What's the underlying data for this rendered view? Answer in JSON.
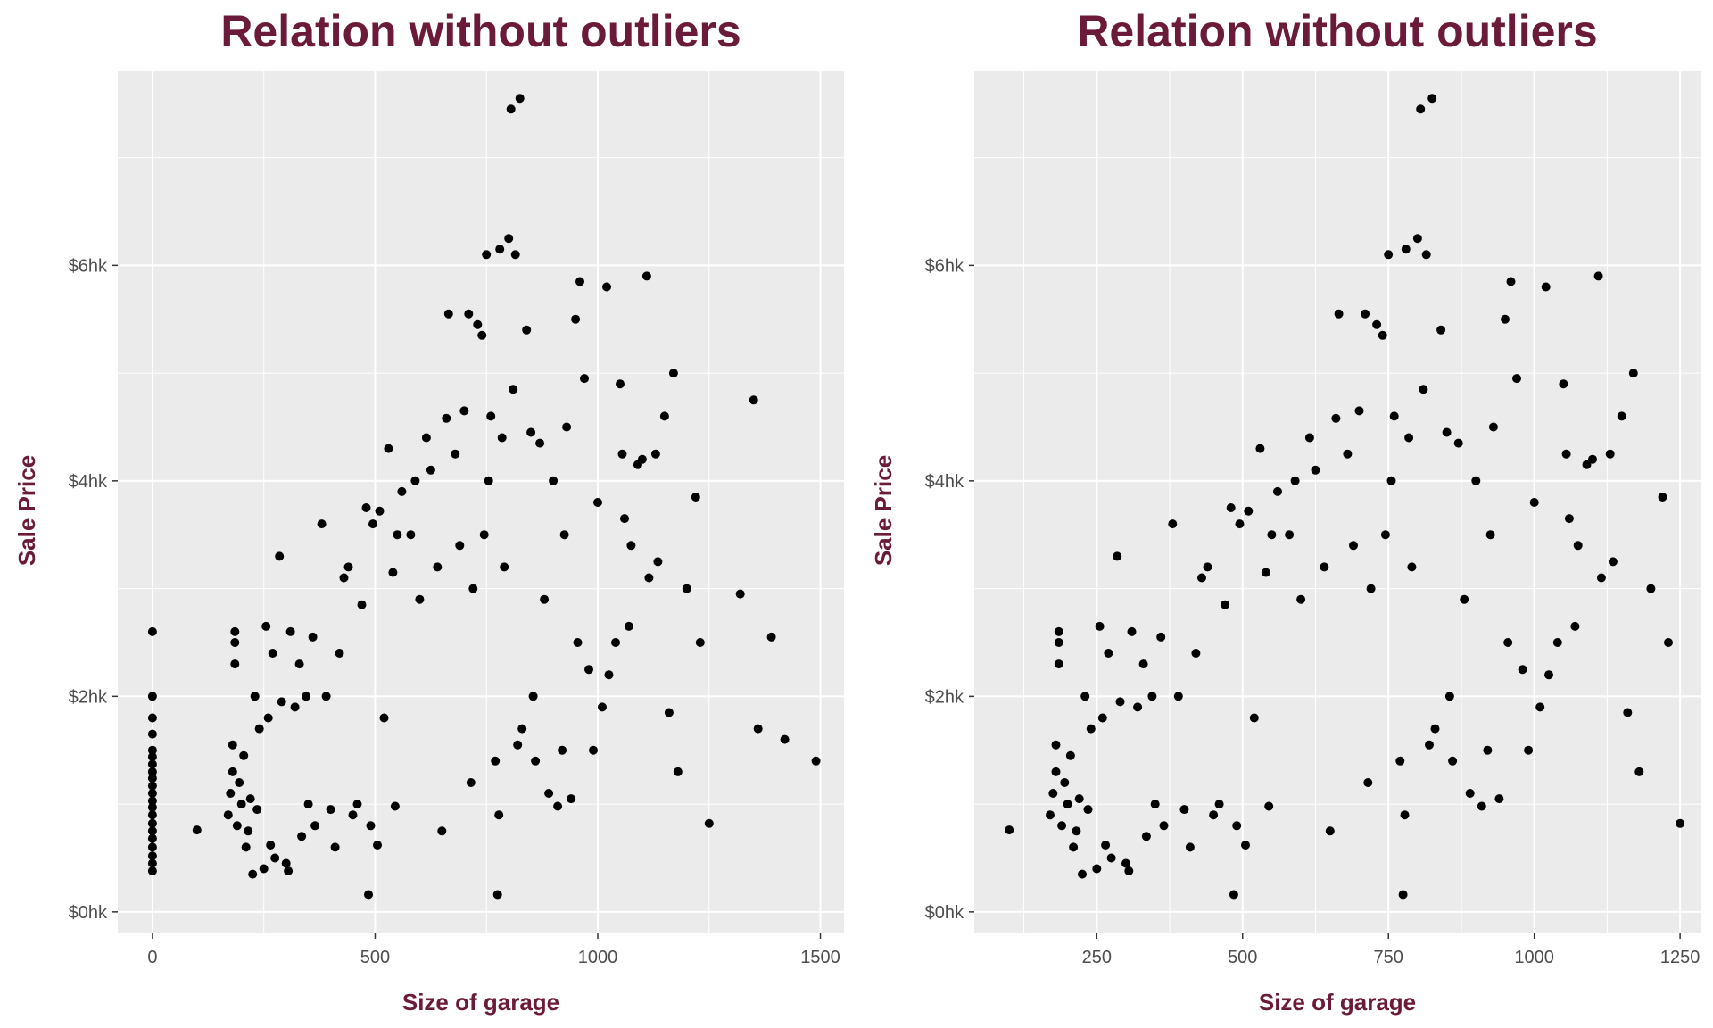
{
  "chart_data": [
    {
      "type": "scatter",
      "title": "Relation without outliers",
      "xlabel": "Size of garage",
      "ylabel": "Sale Price",
      "xlim": [
        -78,
        1553
      ],
      "ylim": [
        -0.2,
        7.8
      ],
      "xticks": [
        0,
        500,
        1000,
        1500
      ],
      "x_minor": [
        250,
        750,
        1250
      ],
      "yticks": [
        0,
        2,
        4,
        6
      ],
      "ytick_labels": [
        "$0hk",
        "$2hk",
        "$4hk",
        "$6hk"
      ],
      "grid": true,
      "points": [
        [
          0,
          0.38
        ],
        [
          0,
          0.45
        ],
        [
          0,
          0.52
        ],
        [
          0,
          0.6
        ],
        [
          0,
          0.68
        ],
        [
          0,
          0.75
        ],
        [
          0,
          0.82
        ],
        [
          0,
          0.9
        ],
        [
          0,
          0.97
        ],
        [
          0,
          1.03
        ],
        [
          0,
          1.1
        ],
        [
          0,
          1.17
        ],
        [
          0,
          1.24
        ],
        [
          0,
          1.3
        ],
        [
          0,
          1.37
        ],
        [
          0,
          1.44
        ],
        [
          0,
          1.5
        ],
        [
          0,
          1.65
        ],
        [
          0,
          1.8
        ],
        [
          0,
          2.0
        ],
        [
          0,
          2.6
        ],
        [
          100,
          0.76
        ],
        [
          170,
          0.9
        ],
        [
          175,
          1.1
        ],
        [
          180,
          1.3
        ],
        [
          180,
          1.55
        ],
        [
          185,
          2.3
        ],
        [
          185,
          2.5
        ],
        [
          185,
          2.6
        ],
        [
          190,
          0.8
        ],
        [
          195,
          1.2
        ],
        [
          200,
          1.0
        ],
        [
          205,
          1.45
        ],
        [
          210,
          0.6
        ],
        [
          215,
          0.75
        ],
        [
          220,
          1.05
        ],
        [
          225,
          0.35
        ],
        [
          230,
          2.0
        ],
        [
          235,
          0.95
        ],
        [
          240,
          1.7
        ],
        [
          250,
          0.4
        ],
        [
          255,
          2.65
        ],
        [
          260,
          1.8
        ],
        [
          265,
          0.62
        ],
        [
          270,
          2.4
        ],
        [
          275,
          0.5
        ],
        [
          285,
          3.3
        ],
        [
          290,
          1.95
        ],
        [
          300,
          0.45
        ],
        [
          305,
          0.38
        ],
        [
          310,
          2.6
        ],
        [
          320,
          1.9
        ],
        [
          330,
          2.3
        ],
        [
          335,
          0.7
        ],
        [
          345,
          2.0
        ],
        [
          350,
          1.0
        ],
        [
          360,
          2.55
        ],
        [
          365,
          0.8
        ],
        [
          380,
          3.6
        ],
        [
          390,
          2.0
        ],
        [
          400,
          0.95
        ],
        [
          410,
          0.6
        ],
        [
          420,
          2.4
        ],
        [
          430,
          3.1
        ],
        [
          440,
          3.2
        ],
        [
          450,
          0.9
        ],
        [
          460,
          1.0
        ],
        [
          470,
          2.85
        ],
        [
          480,
          3.75
        ],
        [
          485,
          0.16
        ],
        [
          490,
          0.8
        ],
        [
          495,
          3.6
        ],
        [
          505,
          0.62
        ],
        [
          510,
          3.72
        ],
        [
          520,
          1.8
        ],
        [
          530,
          4.3
        ],
        [
          540,
          3.15
        ],
        [
          545,
          0.98
        ],
        [
          550,
          3.5
        ],
        [
          560,
          3.9
        ],
        [
          580,
          3.5
        ],
        [
          590,
          4.0
        ],
        [
          600,
          2.9
        ],
        [
          615,
          4.4
        ],
        [
          625,
          4.1
        ],
        [
          640,
          3.2
        ],
        [
          650,
          0.75
        ],
        [
          660,
          4.58
        ],
        [
          665,
          5.55
        ],
        [
          680,
          4.25
        ],
        [
          690,
          3.4
        ],
        [
          700,
          4.65
        ],
        [
          710,
          5.55
        ],
        [
          715,
          1.2
        ],
        [
          720,
          3.0
        ],
        [
          730,
          5.45
        ],
        [
          740,
          5.35
        ],
        [
          745,
          3.5
        ],
        [
          750,
          6.1
        ],
        [
          755,
          4.0
        ],
        [
          760,
          4.6
        ],
        [
          770,
          1.4
        ],
        [
          775,
          0.16
        ],
        [
          778,
          0.9
        ],
        [
          780,
          6.15
        ],
        [
          785,
          4.4
        ],
        [
          790,
          3.2
        ],
        [
          800,
          6.25
        ],
        [
          805,
          7.45
        ],
        [
          810,
          4.85
        ],
        [
          815,
          6.1
        ],
        [
          820,
          1.55
        ],
        [
          825,
          7.55
        ],
        [
          830,
          1.7
        ],
        [
          840,
          5.4
        ],
        [
          850,
          4.45
        ],
        [
          855,
          2.0
        ],
        [
          860,
          1.4
        ],
        [
          870,
          4.35
        ],
        [
          880,
          2.9
        ],
        [
          890,
          1.1
        ],
        [
          900,
          4.0
        ],
        [
          910,
          0.98
        ],
        [
          920,
          1.5
        ],
        [
          925,
          3.5
        ],
        [
          930,
          4.5
        ],
        [
          940,
          1.05
        ],
        [
          950,
          5.5
        ],
        [
          955,
          2.5
        ],
        [
          960,
          5.85
        ],
        [
          970,
          4.95
        ],
        [
          980,
          2.25
        ],
        [
          990,
          1.5
        ],
        [
          1000,
          3.8
        ],
        [
          1010,
          1.9
        ],
        [
          1020,
          5.8
        ],
        [
          1025,
          2.2
        ],
        [
          1040,
          2.5
        ],
        [
          1050,
          4.9
        ],
        [
          1055,
          4.25
        ],
        [
          1060,
          3.65
        ],
        [
          1070,
          2.65
        ],
        [
          1075,
          3.4
        ],
        [
          1090,
          4.15
        ],
        [
          1100,
          4.2
        ],
        [
          1110,
          5.9
        ],
        [
          1115,
          3.1
        ],
        [
          1130,
          4.25
        ],
        [
          1135,
          3.25
        ],
        [
          1150,
          4.6
        ],
        [
          1160,
          1.85
        ],
        [
          1170,
          5.0
        ],
        [
          1180,
          1.3
        ],
        [
          1200,
          3.0
        ],
        [
          1220,
          3.85
        ],
        [
          1230,
          2.5
        ],
        [
          1250,
          0.82
        ],
        [
          1320,
          2.95
        ],
        [
          1350,
          4.75
        ],
        [
          1360,
          1.7
        ],
        [
          1390,
          2.55
        ],
        [
          1420,
          1.6
        ],
        [
          1490,
          1.4
        ]
      ]
    },
    {
      "type": "scatter",
      "title": "Relation without outliers",
      "xlabel": "Size of garage",
      "ylabel": "Sale Price",
      "xlim": [
        40,
        1285
      ],
      "ylim": [
        -0.2,
        7.8
      ],
      "xticks": [
        250,
        500,
        750,
        1000,
        1250
      ],
      "x_minor": [
        125,
        375,
        625,
        875,
        1125
      ],
      "yticks": [
        0,
        2,
        4,
        6
      ],
      "ytick_labels": [
        "$0hk",
        "$2hk",
        "$4hk",
        "$6hk"
      ],
      "grid": true,
      "points": [
        [
          100,
          0.76
        ],
        [
          170,
          0.9
        ],
        [
          175,
          1.1
        ],
        [
          180,
          1.3
        ],
        [
          180,
          1.55
        ],
        [
          185,
          2.3
        ],
        [
          185,
          2.5
        ],
        [
          185,
          2.6
        ],
        [
          190,
          0.8
        ],
        [
          195,
          1.2
        ],
        [
          200,
          1.0
        ],
        [
          205,
          1.45
        ],
        [
          210,
          0.6
        ],
        [
          215,
          0.75
        ],
        [
          220,
          1.05
        ],
        [
          225,
          0.35
        ],
        [
          230,
          2.0
        ],
        [
          235,
          0.95
        ],
        [
          240,
          1.7
        ],
        [
          250,
          0.4
        ],
        [
          255,
          2.65
        ],
        [
          260,
          1.8
        ],
        [
          265,
          0.62
        ],
        [
          270,
          2.4
        ],
        [
          275,
          0.5
        ],
        [
          285,
          3.3
        ],
        [
          290,
          1.95
        ],
        [
          300,
          0.45
        ],
        [
          305,
          0.38
        ],
        [
          310,
          2.6
        ],
        [
          320,
          1.9
        ],
        [
          330,
          2.3
        ],
        [
          335,
          0.7
        ],
        [
          345,
          2.0
        ],
        [
          350,
          1.0
        ],
        [
          360,
          2.55
        ],
        [
          365,
          0.8
        ],
        [
          380,
          3.6
        ],
        [
          390,
          2.0
        ],
        [
          400,
          0.95
        ],
        [
          410,
          0.6
        ],
        [
          420,
          2.4
        ],
        [
          430,
          3.1
        ],
        [
          440,
          3.2
        ],
        [
          450,
          0.9
        ],
        [
          460,
          1.0
        ],
        [
          470,
          2.85
        ],
        [
          480,
          3.75
        ],
        [
          485,
          0.16
        ],
        [
          490,
          0.8
        ],
        [
          495,
          3.6
        ],
        [
          505,
          0.62
        ],
        [
          510,
          3.72
        ],
        [
          520,
          1.8
        ],
        [
          530,
          4.3
        ],
        [
          540,
          3.15
        ],
        [
          545,
          0.98
        ],
        [
          550,
          3.5
        ],
        [
          560,
          3.9
        ],
        [
          580,
          3.5
        ],
        [
          590,
          4.0
        ],
        [
          600,
          2.9
        ],
        [
          615,
          4.4
        ],
        [
          625,
          4.1
        ],
        [
          640,
          3.2
        ],
        [
          650,
          0.75
        ],
        [
          660,
          4.58
        ],
        [
          665,
          5.55
        ],
        [
          680,
          4.25
        ],
        [
          690,
          3.4
        ],
        [
          700,
          4.65
        ],
        [
          710,
          5.55
        ],
        [
          715,
          1.2
        ],
        [
          720,
          3.0
        ],
        [
          730,
          5.45
        ],
        [
          740,
          5.35
        ],
        [
          745,
          3.5
        ],
        [
          750,
          6.1
        ],
        [
          755,
          4.0
        ],
        [
          760,
          4.6
        ],
        [
          770,
          1.4
        ],
        [
          775,
          0.16
        ],
        [
          778,
          0.9
        ],
        [
          780,
          6.15
        ],
        [
          785,
          4.4
        ],
        [
          790,
          3.2
        ],
        [
          800,
          6.25
        ],
        [
          805,
          7.45
        ],
        [
          810,
          4.85
        ],
        [
          815,
          6.1
        ],
        [
          820,
          1.55
        ],
        [
          825,
          7.55
        ],
        [
          830,
          1.7
        ],
        [
          840,
          5.4
        ],
        [
          850,
          4.45
        ],
        [
          855,
          2.0
        ],
        [
          860,
          1.4
        ],
        [
          870,
          4.35
        ],
        [
          880,
          2.9
        ],
        [
          890,
          1.1
        ],
        [
          900,
          4.0
        ],
        [
          910,
          0.98
        ],
        [
          920,
          1.5
        ],
        [
          925,
          3.5
        ],
        [
          930,
          4.5
        ],
        [
          940,
          1.05
        ],
        [
          950,
          5.5
        ],
        [
          955,
          2.5
        ],
        [
          960,
          5.85
        ],
        [
          970,
          4.95
        ],
        [
          980,
          2.25
        ],
        [
          990,
          1.5
        ],
        [
          1000,
          3.8
        ],
        [
          1010,
          1.9
        ],
        [
          1020,
          5.8
        ],
        [
          1025,
          2.2
        ],
        [
          1040,
          2.5
        ],
        [
          1050,
          4.9
        ],
        [
          1055,
          4.25
        ],
        [
          1060,
          3.65
        ],
        [
          1070,
          2.65
        ],
        [
          1075,
          3.4
        ],
        [
          1090,
          4.15
        ],
        [
          1100,
          4.2
        ],
        [
          1110,
          5.9
        ],
        [
          1115,
          3.1
        ],
        [
          1130,
          4.25
        ],
        [
          1135,
          3.25
        ],
        [
          1150,
          4.6
        ],
        [
          1160,
          1.85
        ],
        [
          1170,
          5.0
        ],
        [
          1180,
          1.3
        ],
        [
          1200,
          3.0
        ],
        [
          1220,
          3.85
        ],
        [
          1230,
          2.5
        ],
        [
          1250,
          0.82
        ]
      ]
    }
  ]
}
